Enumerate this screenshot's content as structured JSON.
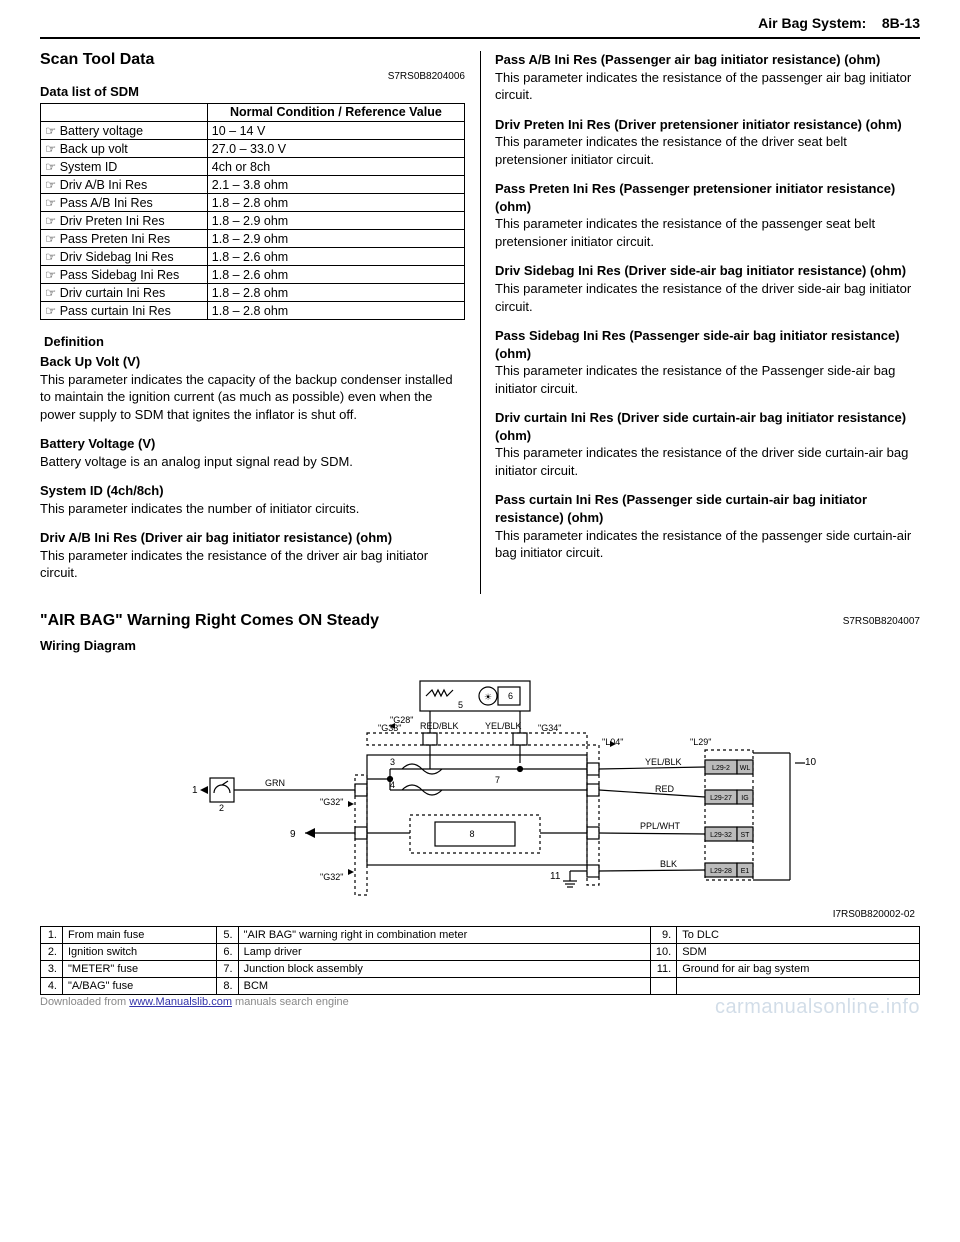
{
  "header": {
    "section": "Air Bag System:",
    "page": "8B-13"
  },
  "left": {
    "title": "Scan Tool Data",
    "code": "S7RS0B8204006",
    "subtitle": "Data list of SDM",
    "tableHeader": {
      "blank": "",
      "value": "Normal Condition / Reference Value"
    },
    "rows": [
      {
        "name": "Battery voltage",
        "value": "10 – 14 V"
      },
      {
        "name": "Back up volt",
        "value": "27.0 – 33.0 V"
      },
      {
        "name": "System ID",
        "value": "4ch or 8ch"
      },
      {
        "name": "Driv A/B Ini Res",
        "value": "2.1 – 3.8 ohm"
      },
      {
        "name": "Pass A/B Ini Res",
        "value": "1.8 – 2.8 ohm"
      },
      {
        "name": "Driv Preten Ini Res",
        "value": "1.8 – 2.9 ohm"
      },
      {
        "name": "Pass Preten Ini Res",
        "value": "1.8 – 2.9 ohm"
      },
      {
        "name": "Driv Sidebag Ini Res",
        "value": "1.8 – 2.6 ohm"
      },
      {
        "name": "Pass Sidebag Ini Res",
        "value": "1.8 – 2.6 ohm"
      },
      {
        "name": "Driv curtain Ini Res",
        "value": "1.8 – 2.8 ohm"
      },
      {
        "name": "Pass curtain Ini Res",
        "value": "1.8 – 2.8 ohm"
      }
    ],
    "definitionLabel": " Definition",
    "defs": [
      {
        "t": "Back Up Volt (V)",
        "b": "This parameter indicates the capacity of the backup condenser installed to maintain the ignition current (as much as possible) even when the power supply to SDM that ignites the inflator is shut off."
      },
      {
        "t": "Battery Voltage (V)",
        "b": "Battery voltage is an analog input signal read by SDM."
      },
      {
        "t": "System ID (4ch/8ch)",
        "b": "This parameter indicates the number of initiator circuits."
      },
      {
        "t": "Driv A/B Ini Res (Driver air bag initiator resistance) (ohm)",
        "b": "This parameter indicates the resistance of the driver air bag initiator circuit."
      }
    ]
  },
  "right": {
    "defs": [
      {
        "t": "Pass A/B Ini Res (Passenger air bag initiator resistance) (ohm)",
        "b": "This parameter indicates the resistance of the passenger air bag initiator circuit."
      },
      {
        "t": "Driv Preten Ini Res (Driver pretensioner initiator resistance) (ohm)",
        "b": "This parameter indicates the resistance of the driver seat belt pretensioner initiator circuit."
      },
      {
        "t": "Pass Preten Ini Res (Passenger pretensioner initiator resistance) (ohm)",
        "b": "This parameter indicates the resistance of the passenger seat belt pretensioner initiator circuit."
      },
      {
        "t": "Driv Sidebag Ini Res (Driver side-air bag initiator resistance) (ohm)",
        "b": "This parameter indicates the resistance of the driver side-air bag initiator circuit."
      },
      {
        "t": "Pass Sidebag Ini Res (Passenger side-air bag initiator resistance) (ohm)",
        "b": "This parameter indicates the resistance of the Passenger side-air bag initiator circuit."
      },
      {
        "t": "Driv curtain Ini Res (Driver side curtain-air bag initiator resistance) (ohm)",
        "b": "This parameter indicates the resistance of the driver side curtain-air bag initiator circuit."
      },
      {
        "t": "Pass curtain Ini Res (Passenger side curtain-air bag initiator resistance) (ohm)",
        "b": "This parameter indicates the resistance of the passenger side curtain-air bag initiator circuit."
      }
    ]
  },
  "full": {
    "title": "\"AIR BAG\" Warning Right Comes ON Steady",
    "code": "S7RS0B8204007",
    "subtitle": "Wiring Diagram"
  },
  "diagram": {
    "code": "I7RS0B820002-02",
    "labels": {
      "g28": "\"G28\"",
      "g33": "\"G33\"",
      "g34": "\"G34\"",
      "g32a": "\"G32\"",
      "g32b": "\"G32\"",
      "l04": "\"L04\"",
      "l29": "\"L29\"",
      "redblk": "RED/BLK",
      "yelblk": "YEL/BLK",
      "yelblk2": "YEL/BLK",
      "red": "RED",
      "pplwht": "PPL/WHT",
      "blk": "BLK",
      "grn": "GRN",
      "l29_2": "L29-2",
      "wl": "WL",
      "l29_27": "L29-27",
      "ig": "IG",
      "l29_32": "L29-32",
      "st": "ST",
      "l29_28": "L29-28",
      "e1": "E1"
    },
    "nums": {
      "1": "1",
      "2": "2",
      "3": "3",
      "4": "4",
      "5": "5",
      "6": "6",
      "7": "7",
      "8": "8",
      "9": "9",
      "10": "10",
      "11": "11"
    }
  },
  "legend": {
    "rows": [
      [
        {
          "n": "1.",
          "t": "From main fuse"
        },
        {
          "n": "5.",
          "t": "\"AIR BAG\" warning right in combination meter"
        },
        {
          "n": "9.",
          "t": "To DLC"
        }
      ],
      [
        {
          "n": "2.",
          "t": "Ignition switch"
        },
        {
          "n": "6.",
          "t": "Lamp driver"
        },
        {
          "n": "10.",
          "t": "SDM"
        }
      ],
      [
        {
          "n": "3.",
          "t": "\"METER\" fuse"
        },
        {
          "n": "7.",
          "t": "Junction block assembly"
        },
        {
          "n": "11.",
          "t": "Ground for air bag system"
        }
      ],
      [
        {
          "n": "4.",
          "t": "\"A/BAG\" fuse"
        },
        {
          "n": "8.",
          "t": "BCM"
        },
        {
          "n": "",
          "t": ""
        }
      ]
    ]
  },
  "footer": {
    "dl1": "Downloaded from ",
    "dl2": "www.Manualslib.com",
    "dl3": " manuals search engine",
    "site": "carmanualsonline.info"
  }
}
